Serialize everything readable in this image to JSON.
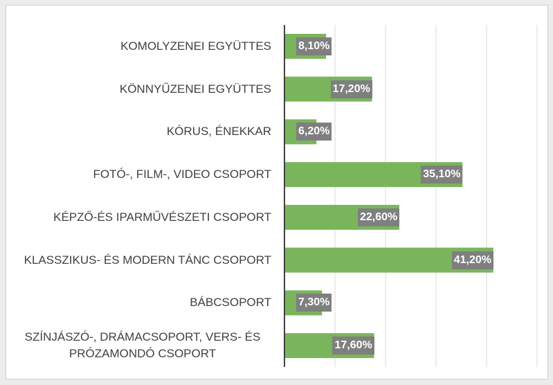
{
  "chart_data": {
    "type": "bar",
    "orientation": "horizontal",
    "categories": [
      "KOMOLYZENEI EGYÜTTES",
      "KÖNNYŰZENEI EGYÜTTES",
      "KÓRUS, ÉNEKKAR",
      "FOTÓ-, FILM-, VIDEO CSOPORT",
      "KÉPZŐ-ÉS IPARMŰVÉSZETI CSOPORT",
      "KLASSZIKUS- ÉS MODERN TÁNC CSOPORT",
      "BÁBCSOPORT",
      "SZÍNJÁSZÓ-, DRÁMACSOPORT, VERS- ÉS PRÓZAMONDÓ CSOPORT"
    ],
    "values": [
      8.1,
      17.2,
      6.2,
      35.1,
      22.6,
      41.2,
      7.3,
      17.6
    ],
    "value_labels": [
      "8,10%",
      "17,20%",
      "6,20%",
      "35,10%",
      "22,60%",
      "41,20%",
      "7,30%",
      "17,60%"
    ],
    "color": "#7ab55c",
    "xlim": [
      0,
      50
    ],
    "xticks": [
      0,
      10,
      20,
      30,
      40,
      50
    ],
    "grid": true
  }
}
